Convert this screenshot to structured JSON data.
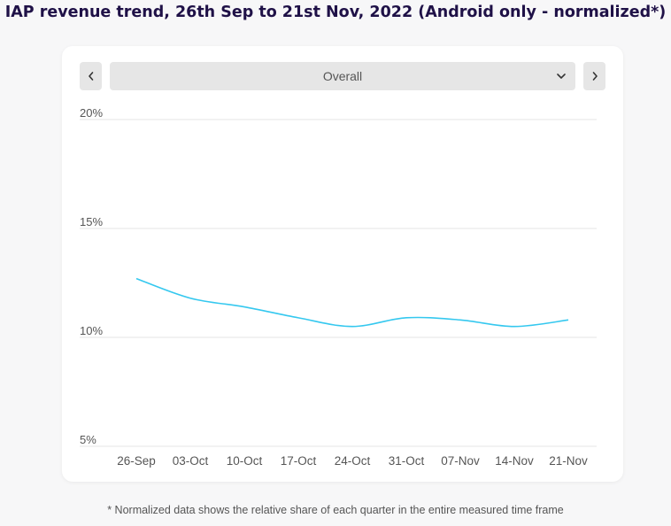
{
  "title": "IAP revenue trend, 26th Sep to 21st Nov, 2022 (Android only - normalized*)",
  "dropdown": {
    "selected": "Overall"
  },
  "footnote": "* Normalized data shows the relative share of each quarter in the entire measured time frame",
  "colors": {
    "line": "#35c8ef",
    "title": "#1f1147",
    "grid": "#e6e6e6"
  },
  "icons": {
    "prev": "chevron-left-icon",
    "next": "chevron-right-icon",
    "dropdown": "chevron-down-icon"
  },
  "chart_data": {
    "type": "line",
    "x": [
      "26-Sep",
      "03-Oct",
      "10-Oct",
      "17-Oct",
      "24-Oct",
      "31-Oct",
      "07-Nov",
      "14-Nov",
      "21-Nov"
    ],
    "series": [
      {
        "values": [
          12.7,
          11.8,
          11.4,
          10.9,
          10.5,
          10.9,
          10.8,
          10.5,
          10.8
        ]
      }
    ],
    "y_ticks": [
      "5%",
      "10%",
      "15%",
      "20%"
    ],
    "y_tick_values": [
      5,
      10,
      15,
      20
    ],
    "ylim": [
      5,
      20
    ],
    "grid": true,
    "legend": false
  }
}
